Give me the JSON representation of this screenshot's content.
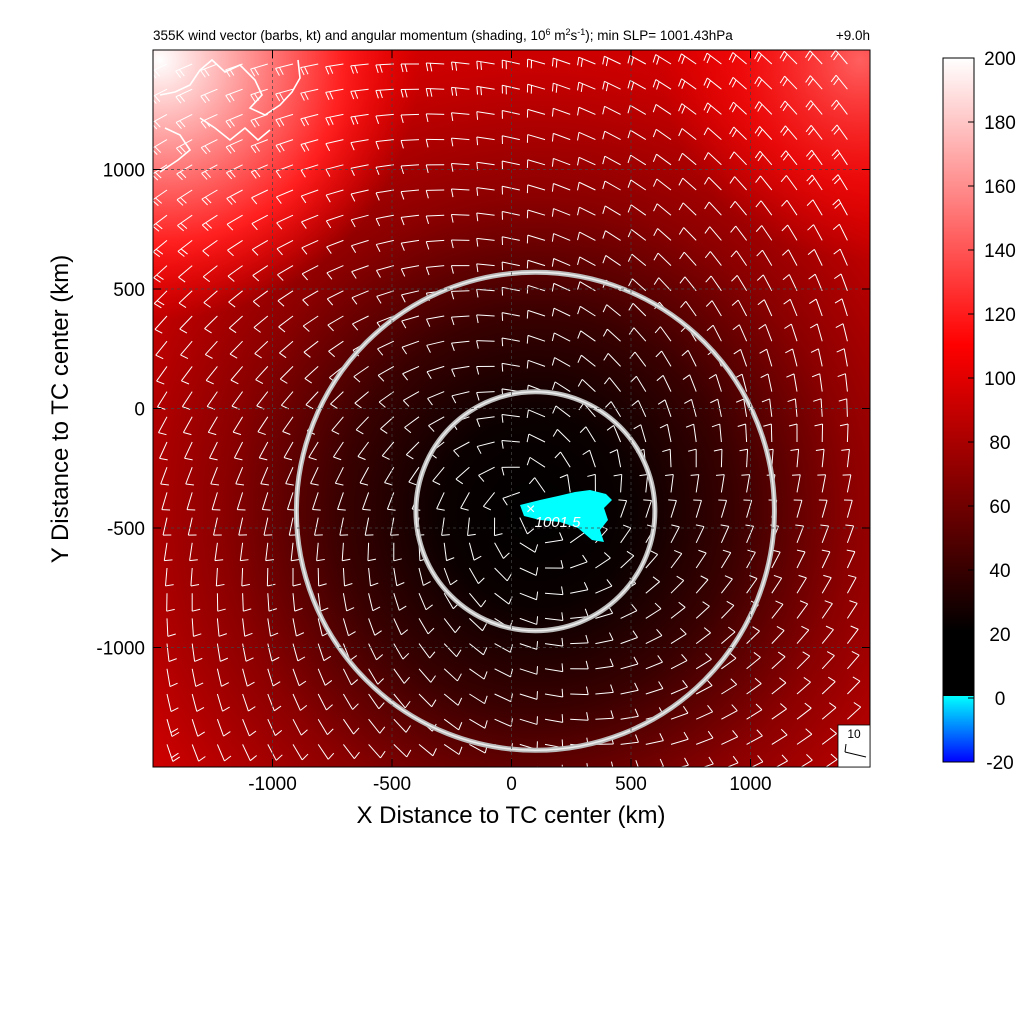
{
  "chart_data": {
    "type": "heatmap",
    "title_main": "355K wind vector (barbs, kt) and angular momentum (shading, 10",
    "title_exp1": "6",
    "title_unit": " m",
    "title_exp2": "2",
    "title_unit2": "s",
    "title_exp3": "-1",
    "title_rest": "); min SLP= 1001.43hPa",
    "forecast_time": "+9.0h",
    "xlabel": "X Distance to TC center (km)",
    "ylabel": "Y Distance to TC center (km)",
    "xlim": [
      -1500,
      1500
    ],
    "ylim": [
      -1500,
      1500
    ],
    "x_ticks": [
      -1000,
      -500,
      0,
      500,
      1000
    ],
    "y_ticks": [
      -1000,
      -500,
      0,
      500,
      1000
    ],
    "x_tick_labels": [
      "-1000",
      "-500",
      "0",
      "500",
      "1000"
    ],
    "y_tick_labels": [
      "-1000",
      "-500",
      "0",
      "500",
      "1000"
    ],
    "grid": "dashed",
    "colorbar": {
      "range": [
        -20,
        200
      ],
      "ticks": [
        200,
        180,
        160,
        140,
        120,
        100,
        80,
        60,
        40,
        20,
        0,
        -20
      ],
      "tick_labels": [
        "200",
        "180",
        "160",
        "140",
        "120",
        "100",
        "80",
        "60",
        "40",
        "20",
        "0",
        "-20"
      ],
      "colors": {
        "neg_bottom": "#0000ff",
        "neg_top": "#00ffff",
        "zero": "#000000",
        "mid": "#ff0000",
        "top": "#ffffff"
      }
    },
    "center_marker": {
      "x": 80,
      "y": -420,
      "label": "1001.5"
    },
    "circles": [
      {
        "cx": 100,
        "cy": -430,
        "r_km": 500
      },
      {
        "cx": 100,
        "cy": -430,
        "r_km": 1000
      }
    ],
    "barb_reference": {
      "label": "10"
    }
  }
}
